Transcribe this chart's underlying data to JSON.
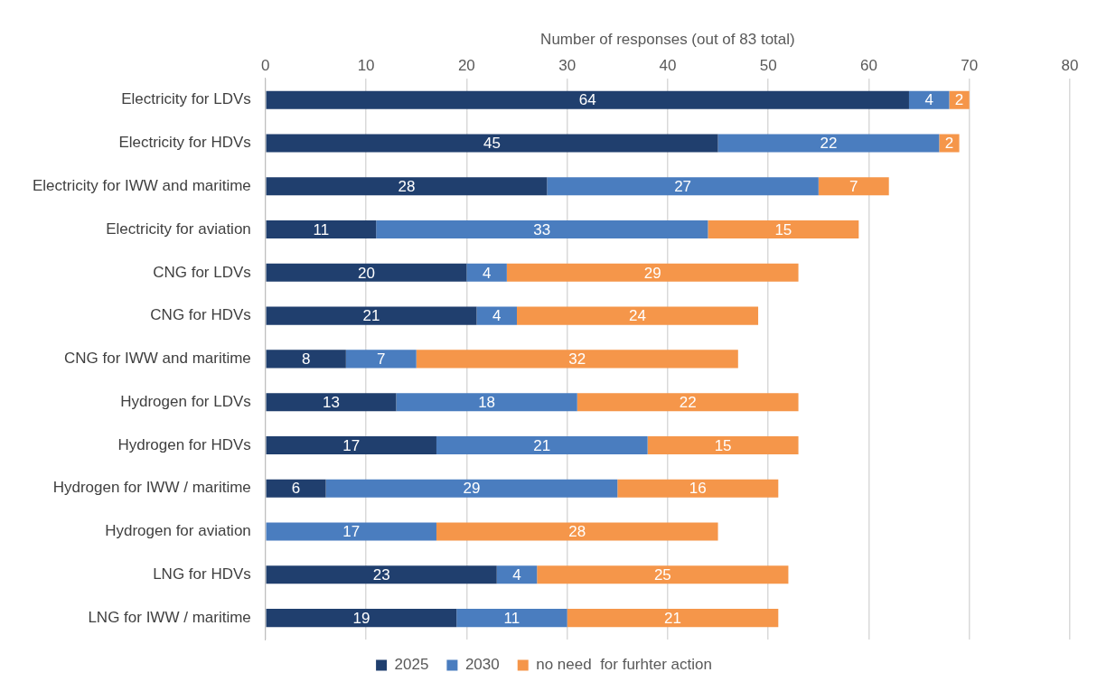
{
  "chart_data": {
    "type": "bar",
    "orientation": "horizontal",
    "stacked": true,
    "xlabel": "Number of responses (out of 83 total)",
    "categories": [
      "Electricity for LDVs",
      "Electricity for HDVs",
      "Electricity for IWW and maritime",
      "Electricity for aviation",
      "CNG for LDVs",
      "CNG for HDVs",
      "CNG for IWW and maritime",
      "Hydrogen for LDVs",
      "Hydrogen for HDVs",
      "Hydrogen for IWW / maritime",
      "Hydrogen for aviation",
      "LNG for HDVs",
      "LNG for IWW / maritime"
    ],
    "series": [
      {
        "name": "2025",
        "color": "#203f6e",
        "values": [
          64,
          45,
          28,
          11,
          20,
          21,
          8,
          13,
          17,
          6,
          null,
          23,
          19
        ]
      },
      {
        "name": "2030",
        "color": "#4a7dbf",
        "values": [
          4,
          22,
          27,
          33,
          4,
          4,
          7,
          18,
          21,
          29,
          17,
          4,
          11
        ]
      },
      {
        "name": "no need  for furhter action",
        "color": "#f5964a",
        "values": [
          2,
          2,
          7,
          15,
          29,
          24,
          32,
          22,
          15,
          16,
          28,
          25,
          21
        ]
      }
    ],
    "xlim": [
      0,
      80
    ],
    "xticks": [
      0,
      10,
      20,
      30,
      40,
      50,
      60,
      70,
      80
    ],
    "grid": "x",
    "legend": "bottom",
    "data_labels": true
  }
}
